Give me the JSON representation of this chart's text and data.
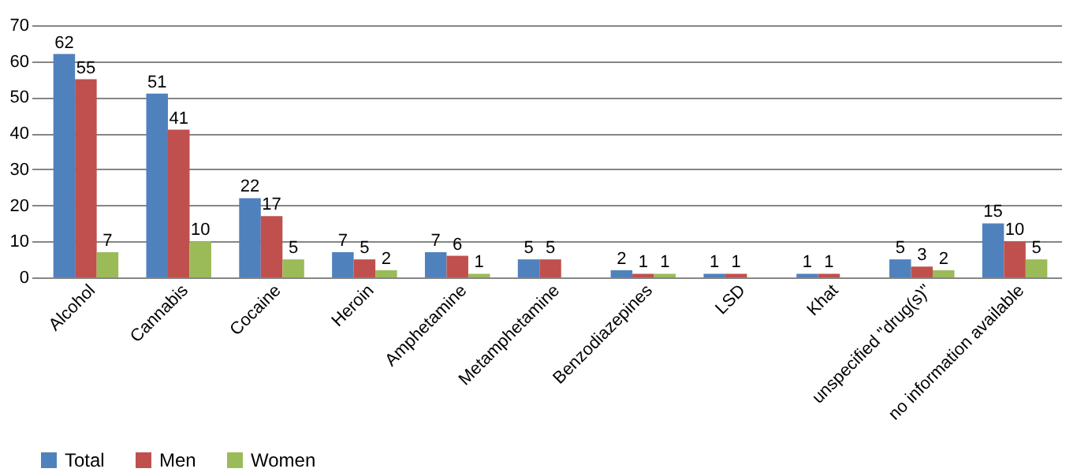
{
  "chart_data": {
    "type": "bar",
    "categories": [
      "Alcohol",
      "Cannabis",
      "Cocaine",
      "Heroin",
      "Amphetamine",
      "Metamphetamine",
      "Benzodiazepines",
      "LSD",
      "Khat",
      "unspecified \"drug(s)\"",
      "no information available"
    ],
    "series": [
      {
        "name": "Total",
        "color": "#4f81bd",
        "values": [
          62,
          51,
          22,
          7,
          7,
          5,
          2,
          1,
          1,
          5,
          15
        ]
      },
      {
        "name": "Men",
        "color": "#c0504d",
        "values": [
          55,
          41,
          17,
          5,
          6,
          5,
          1,
          1,
          1,
          3,
          10
        ]
      },
      {
        "name": "Women",
        "color": "#9bbb59",
        "values": [
          7,
          10,
          5,
          2,
          1,
          null,
          1,
          null,
          null,
          2,
          5
        ]
      }
    ],
    "ylim": [
      0,
      70
    ],
    "yticks": [
      0,
      10,
      20,
      30,
      40,
      50,
      60,
      70
    ],
    "grid": "y",
    "legend": "bottom",
    "data_labels": true
  }
}
